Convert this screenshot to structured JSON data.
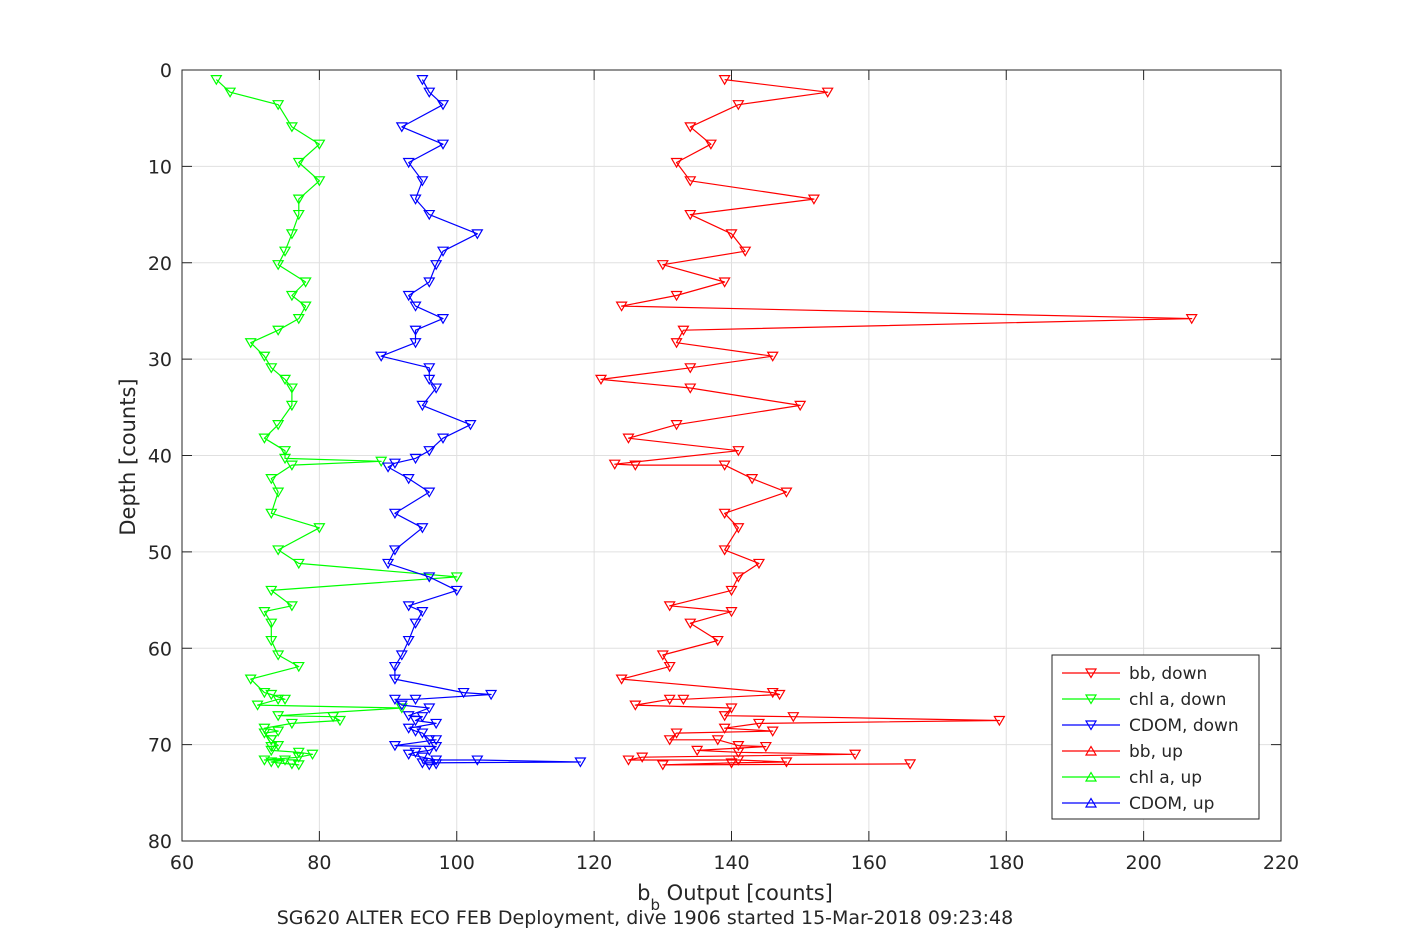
{
  "chart_data": {
    "type": "line",
    "xlabel": "b",
    "xlabel_subscript": "b",
    "xlabel_suffix": " Output [counts]",
    "ylabel": "Depth [counts]",
    "caption": "SG620 ALTER ECO FEB Deployment, dive 1906 started 15-Mar-2018 09:23:48",
    "xlim": [
      60,
      220
    ],
    "ylim": [
      0,
      80
    ],
    "y_reversed": true,
    "grid": true,
    "legend_position": "bottom-right",
    "x_ticks": [
      60,
      80,
      100,
      120,
      140,
      160,
      180,
      200,
      220
    ],
    "y_ticks": [
      0,
      10,
      20,
      30,
      40,
      50,
      60,
      70,
      80
    ],
    "series": [
      {
        "name": "bb, down",
        "color": "#ff0000",
        "marker": "triangle-down",
        "points": [
          [
            139,
            1
          ],
          [
            154,
            2.3
          ],
          [
            141,
            3.6
          ],
          [
            134,
            5.9
          ],
          [
            137,
            7.7
          ],
          [
            132,
            9.6
          ],
          [
            134,
            11.5
          ],
          [
            152,
            13.4
          ],
          [
            134,
            15
          ],
          [
            140,
            17
          ],
          [
            142,
            18.8
          ],
          [
            130,
            20.2
          ],
          [
            139,
            22
          ],
          [
            132,
            23.4
          ],
          [
            124,
            24.5
          ],
          [
            207,
            25.8
          ],
          [
            133,
            27
          ],
          [
            132,
            28.3
          ],
          [
            146,
            29.7
          ],
          [
            134,
            30.9
          ],
          [
            121,
            32.1
          ],
          [
            134,
            33
          ],
          [
            150,
            34.8
          ],
          [
            132,
            36.8
          ],
          [
            125,
            38.2
          ],
          [
            141,
            39.5
          ],
          [
            123,
            40.9
          ],
          [
            126,
            41
          ],
          [
            139,
            41
          ],
          [
            143,
            42.4
          ],
          [
            148,
            43.8
          ],
          [
            139,
            46
          ],
          [
            141,
            47.5
          ],
          [
            139,
            49.8
          ],
          [
            144,
            51.2
          ],
          [
            141,
            52.6
          ],
          [
            140,
            54
          ],
          [
            131,
            55.6
          ],
          [
            140,
            56.2
          ],
          [
            134,
            57.4
          ],
          [
            138,
            59.2
          ],
          [
            130,
            60.7
          ],
          [
            131,
            61.9
          ],
          [
            124,
            63.2
          ],
          [
            146,
            64.6
          ],
          [
            147,
            64.8
          ],
          [
            133,
            65.3
          ],
          [
            131,
            65.3
          ],
          [
            126,
            65.9
          ],
          [
            140,
            66.2
          ],
          [
            139,
            67
          ],
          [
            149,
            67.1
          ],
          [
            179,
            67.5
          ],
          [
            144,
            67.8
          ],
          [
            139,
            68.3
          ],
          [
            146,
            68.6
          ],
          [
            132,
            68.8
          ],
          [
            131,
            69.5
          ],
          [
            138,
            69.5
          ],
          [
            141,
            70.1
          ],
          [
            145,
            70.2
          ],
          [
            135,
            70.6
          ],
          [
            141,
            70.8
          ],
          [
            158,
            71
          ],
          [
            127,
            71.3
          ],
          [
            125,
            71.6
          ],
          [
            141,
            71.6
          ],
          [
            148,
            71.8
          ],
          [
            140,
            71.9
          ],
          [
            130,
            72.1
          ],
          [
            166,
            72
          ]
        ]
      },
      {
        "name": "chl a, down",
        "color": "#00ff00",
        "marker": "triangle-down",
        "points": [
          [
            65,
            1
          ],
          [
            67,
            2.3
          ],
          [
            74,
            3.6
          ],
          [
            76,
            5.9
          ],
          [
            80,
            7.7
          ],
          [
            77,
            9.6
          ],
          [
            80,
            11.5
          ],
          [
            77,
            13.4
          ],
          [
            77,
            15
          ],
          [
            76,
            17
          ],
          [
            75,
            18.8
          ],
          [
            74,
            20.2
          ],
          [
            78,
            22
          ],
          [
            76,
            23.4
          ],
          [
            78,
            24.5
          ],
          [
            77,
            25.8
          ],
          [
            74,
            27
          ],
          [
            70,
            28.3
          ],
          [
            72,
            29.7
          ],
          [
            73,
            30.9
          ],
          [
            75,
            32.1
          ],
          [
            76,
            33
          ],
          [
            76,
            34.8
          ],
          [
            74,
            36.8
          ],
          [
            72,
            38.2
          ],
          [
            75,
            39.5
          ],
          [
            75,
            40.3
          ],
          [
            89,
            40.6
          ],
          [
            76,
            41
          ],
          [
            73,
            42.4
          ],
          [
            74,
            43.8
          ],
          [
            73,
            46
          ],
          [
            80,
            47.5
          ],
          [
            74,
            49.8
          ],
          [
            77,
            51.2
          ],
          [
            100,
            52.6
          ],
          [
            73,
            54
          ],
          [
            76,
            55.6
          ],
          [
            72,
            56.2
          ],
          [
            73,
            57.4
          ],
          [
            73,
            59.2
          ],
          [
            74,
            60.7
          ],
          [
            77,
            61.9
          ],
          [
            70,
            63.2
          ],
          [
            72,
            64.6
          ],
          [
            73,
            64.8
          ],
          [
            75,
            65.3
          ],
          [
            74,
            65.3
          ],
          [
            71,
            65.9
          ],
          [
            92,
            66.2
          ],
          [
            74,
            67
          ],
          [
            82,
            67.1
          ],
          [
            83,
            67.5
          ],
          [
            76,
            67.8
          ],
          [
            72,
            68.3
          ],
          [
            74,
            68.6
          ],
          [
            72,
            68.8
          ],
          [
            73,
            69.5
          ],
          [
            73,
            69.5
          ],
          [
            74,
            70.1
          ],
          [
            73,
            70.2
          ],
          [
            73,
            70.6
          ],
          [
            77,
            70.8
          ],
          [
            79,
            71
          ],
          [
            77,
            71.3
          ],
          [
            72,
            71.6
          ],
          [
            75,
            71.6
          ],
          [
            73,
            71.8
          ],
          [
            74,
            71.9
          ],
          [
            77,
            72.1
          ],
          [
            76,
            72
          ]
        ]
      },
      {
        "name": "CDOM, down",
        "color": "#0000ff",
        "marker": "triangle-down",
        "points": [
          [
            95,
            1
          ],
          [
            96,
            2.3
          ],
          [
            98,
            3.6
          ],
          [
            92,
            5.9
          ],
          [
            98,
            7.7
          ],
          [
            93,
            9.6
          ],
          [
            95,
            11.5
          ],
          [
            94,
            13.4
          ],
          [
            96,
            15
          ],
          [
            103,
            17
          ],
          [
            98,
            18.8
          ],
          [
            97,
            20.2
          ],
          [
            96,
            22
          ],
          [
            93,
            23.4
          ],
          [
            94,
            24.5
          ],
          [
            98,
            25.8
          ],
          [
            94,
            27
          ],
          [
            94,
            28.3
          ],
          [
            89,
            29.7
          ],
          [
            96,
            30.9
          ],
          [
            96,
            32.1
          ],
          [
            97,
            33
          ],
          [
            95,
            34.8
          ],
          [
            102,
            36.8
          ],
          [
            98,
            38.2
          ],
          [
            96,
            39.5
          ],
          [
            94,
            40.3
          ],
          [
            91,
            40.8
          ],
          [
            90,
            41.2
          ],
          [
            93,
            42.4
          ],
          [
            96,
            43.8
          ],
          [
            91,
            46
          ],
          [
            95,
            47.5
          ],
          [
            91,
            49.8
          ],
          [
            90,
            51.2
          ],
          [
            96,
            52.6
          ],
          [
            100,
            54
          ],
          [
            93,
            55.6
          ],
          [
            95,
            56.2
          ],
          [
            94,
            57.4
          ],
          [
            93,
            59.2
          ],
          [
            92,
            60.7
          ],
          [
            91,
            61.9
          ],
          [
            91,
            63.2
          ],
          [
            101,
            64.6
          ],
          [
            105,
            64.8
          ],
          [
            94,
            65.3
          ],
          [
            91,
            65.3
          ],
          [
            92,
            65.9
          ],
          [
            96,
            66.2
          ],
          [
            93,
            67
          ],
          [
            95,
            67.1
          ],
          [
            94,
            67.5
          ],
          [
            97,
            67.8
          ],
          [
            93,
            68.3
          ],
          [
            94,
            68.6
          ],
          [
            95,
            68.8
          ],
          [
            96,
            69.5
          ],
          [
            97,
            69.5
          ],
          [
            91,
            70.1
          ],
          [
            97,
            70.2
          ],
          [
            96,
            70.6
          ],
          [
            94,
            70.8
          ],
          [
            93,
            71
          ],
          [
            95,
            71.3
          ],
          [
            97,
            71.6
          ],
          [
            103,
            71.6
          ],
          [
            118,
            71.8
          ],
          [
            95,
            71.9
          ],
          [
            96,
            72.1
          ],
          [
            97,
            72
          ]
        ]
      },
      {
        "name": "bb, up",
        "color": "#ff0000",
        "marker": "triangle-up",
        "points": []
      },
      {
        "name": "chl a, up",
        "color": "#00ff00",
        "marker": "triangle-up",
        "points": []
      },
      {
        "name": "CDOM, up",
        "color": "#0000ff",
        "marker": "triangle-up",
        "points": []
      }
    ]
  }
}
